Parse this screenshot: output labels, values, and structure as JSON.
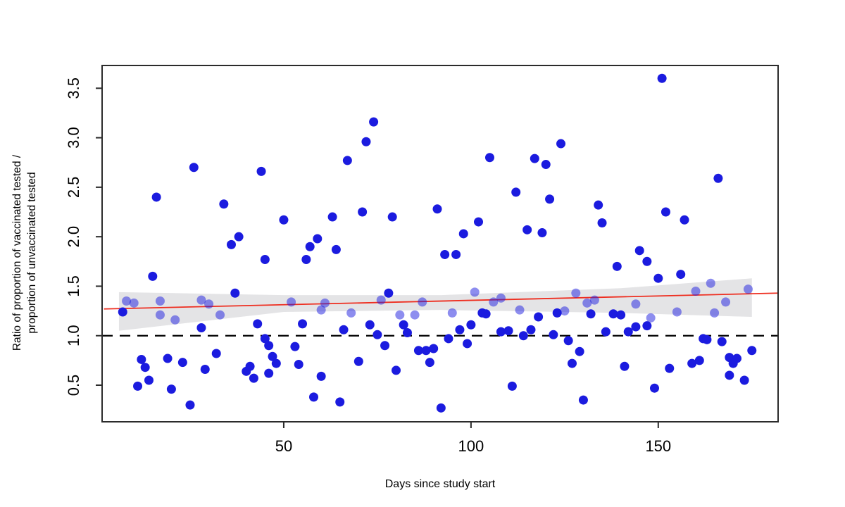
{
  "figure": {
    "background": "#ffffff"
  },
  "chart_data": {
    "type": "scatter",
    "title": "",
    "xlabel": "Days since study start",
    "ylabel_line1": "Ratio of proportion of vaccinated tested /",
    "ylabel_line2": "proportion of unvaccinated tested",
    "xlim": [
      1.5,
      182
    ],
    "ylim": [
      0.13,
      3.73
    ],
    "x_ticks": [
      {
        "v": 50,
        "label": "50"
      },
      {
        "v": 100,
        "label": "100"
      },
      {
        "v": 150,
        "label": "150"
      }
    ],
    "y_ticks": [
      {
        "v": 0.5,
        "label": "0.5"
      },
      {
        "v": 1.0,
        "label": "1.0"
      },
      {
        "v": 1.5,
        "label": "1.5"
      },
      {
        "v": 2.0,
        "label": "2.0"
      },
      {
        "v": 2.5,
        "label": "2.5"
      },
      {
        "v": 3.0,
        "label": "3.0"
      },
      {
        "v": 3.5,
        "label": "3.5"
      }
    ],
    "grid": false,
    "legend": "none",
    "axis_color": "#2b2b2b",
    "reference_line": {
      "y": 1.0,
      "style": "dashed",
      "color": "#000000"
    },
    "regression_line": {
      "color": "#ee2e20",
      "x": [
        2,
        182
      ],
      "y": [
        1.27,
        1.43
      ]
    },
    "confidence_band": {
      "color": "#e4e4e6",
      "x": [
        6,
        50,
        92,
        140,
        175
      ],
      "upper": [
        1.44,
        1.41,
        1.41,
        1.48,
        1.58
      ],
      "lower": [
        1.05,
        1.24,
        1.26,
        1.23,
        1.19
      ]
    },
    "points": {
      "color": "#1b1bdf",
      "alpha_value": 0.5,
      "radius": 6.5,
      "data": [
        [
          26,
          2.7,
          0
        ],
        [
          44,
          2.66,
          0
        ],
        [
          67,
          2.77,
          0
        ],
        [
          72,
          2.96,
          0
        ],
        [
          74,
          3.16,
          0
        ],
        [
          105,
          2.8,
          0
        ],
        [
          117,
          2.79,
          0
        ],
        [
          120,
          2.73,
          0
        ],
        [
          124,
          2.94,
          0
        ],
        [
          151,
          3.6,
          0
        ],
        [
          166,
          2.59,
          0
        ],
        [
          16,
          2.4,
          0
        ],
        [
          34,
          2.33,
          0
        ],
        [
          50,
          2.17,
          0
        ],
        [
          38,
          2.0,
          0
        ],
        [
          36,
          1.92,
          0
        ],
        [
          45,
          1.77,
          0
        ],
        [
          15,
          1.6,
          0
        ],
        [
          63,
          2.2,
          0
        ],
        [
          71,
          2.25,
          0
        ],
        [
          79,
          2.2,
          0
        ],
        [
          91,
          2.28,
          0
        ],
        [
          98,
          2.03,
          0
        ],
        [
          59,
          1.98,
          0
        ],
        [
          57,
          1.9,
          0
        ],
        [
          64,
          1.87,
          0
        ],
        [
          56,
          1.77,
          0
        ],
        [
          93,
          1.82,
          0
        ],
        [
          96,
          1.82,
          0
        ],
        [
          112,
          2.45,
          0
        ],
        [
          121,
          2.38,
          0
        ],
        [
          134,
          2.32,
          0
        ],
        [
          102,
          2.15,
          0
        ],
        [
          115,
          2.07,
          0
        ],
        [
          119,
          2.04,
          0
        ],
        [
          135,
          2.14,
          0
        ],
        [
          145,
          1.86,
          0
        ],
        [
          147,
          1.75,
          0
        ],
        [
          139,
          1.7,
          0
        ],
        [
          152,
          2.25,
          0
        ],
        [
          157,
          2.17,
          0
        ],
        [
          156,
          1.62,
          0
        ],
        [
          150,
          1.58,
          0
        ],
        [
          7,
          1.24,
          0
        ],
        [
          8,
          1.35,
          1
        ],
        [
          10,
          1.33,
          1
        ],
        [
          17,
          1.35,
          1
        ],
        [
          17,
          1.21,
          1
        ],
        [
          21,
          1.16,
          1
        ],
        [
          28,
          1.36,
          1
        ],
        [
          30,
          1.32,
          1
        ],
        [
          33,
          1.21,
          1
        ],
        [
          37,
          1.43,
          0
        ],
        [
          28,
          1.08,
          0
        ],
        [
          43,
          1.12,
          0
        ],
        [
          52,
          1.34,
          1
        ],
        [
          60,
          1.26,
          1
        ],
        [
          61,
          1.33,
          1
        ],
        [
          68,
          1.23,
          1
        ],
        [
          76,
          1.36,
          1
        ],
        [
          78,
          1.43,
          0
        ],
        [
          81,
          1.21,
          1
        ],
        [
          85,
          1.21,
          1
        ],
        [
          87,
          1.34,
          1
        ],
        [
          95,
          1.23,
          1
        ],
        [
          101,
          1.44,
          1
        ],
        [
          106,
          1.34,
          1
        ],
        [
          108,
          1.38,
          1
        ],
        [
          113,
          1.26,
          1
        ],
        [
          125,
          1.25,
          1
        ],
        [
          128,
          1.43,
          1
        ],
        [
          131,
          1.33,
          1
        ],
        [
          133,
          1.36,
          1
        ],
        [
          144,
          1.32,
          1
        ],
        [
          148,
          1.18,
          1
        ],
        [
          155,
          1.24,
          1
        ],
        [
          160,
          1.45,
          1
        ],
        [
          164,
          1.53,
          1
        ],
        [
          165,
          1.23,
          1
        ],
        [
          168,
          1.34,
          1
        ],
        [
          174,
          1.47,
          1
        ],
        [
          123,
          1.23,
          0
        ],
        [
          132,
          1.22,
          0
        ],
        [
          138,
          1.22,
          0
        ],
        [
          140,
          1.21,
          0
        ],
        [
          103,
          1.23,
          0
        ],
        [
          104,
          1.22,
          0
        ],
        [
          118,
          1.19,
          0
        ],
        [
          55,
          1.12,
          0
        ],
        [
          66,
          1.06,
          0
        ],
        [
          73,
          1.11,
          0
        ],
        [
          75,
          1.01,
          0
        ],
        [
          82,
          1.11,
          0
        ],
        [
          83,
          1.03,
          0
        ],
        [
          97,
          1.06,
          0
        ],
        [
          94,
          0.97,
          0
        ],
        [
          99,
          0.92,
          0
        ],
        [
          53,
          0.89,
          0
        ],
        [
          77,
          0.9,
          0
        ],
        [
          86,
          0.85,
          0
        ],
        [
          88,
          0.85,
          0
        ],
        [
          90,
          0.87,
          0
        ],
        [
          100,
          1.11,
          0
        ],
        [
          108,
          1.04,
          0
        ],
        [
          110,
          1.05,
          0
        ],
        [
          116,
          1.06,
          0
        ],
        [
          114,
          1.0,
          0
        ],
        [
          122,
          1.01,
          0
        ],
        [
          136,
          1.04,
          0
        ],
        [
          142,
          1.04,
          0
        ],
        [
          144,
          1.09,
          0
        ],
        [
          147,
          1.1,
          0
        ],
        [
          126,
          0.95,
          0
        ],
        [
          45,
          0.97,
          0
        ],
        [
          46,
          0.9,
          0
        ],
        [
          162,
          0.97,
          0
        ],
        [
          163,
          0.96,
          0
        ],
        [
          167,
          0.94,
          0
        ],
        [
          12,
          0.76,
          0
        ],
        [
          13,
          0.68,
          0
        ],
        [
          11,
          0.49,
          0
        ],
        [
          14,
          0.55,
          0
        ],
        [
          19,
          0.77,
          0
        ],
        [
          23,
          0.73,
          0
        ],
        [
          20,
          0.46,
          0
        ],
        [
          25,
          0.3,
          0
        ],
        [
          29,
          0.66,
          0
        ],
        [
          32,
          0.82,
          0
        ],
        [
          40,
          0.64,
          0
        ],
        [
          41,
          0.69,
          0
        ],
        [
          42,
          0.57,
          0
        ],
        [
          47,
          0.79,
          0
        ],
        [
          48,
          0.72,
          0
        ],
        [
          46,
          0.62,
          0
        ],
        [
          54,
          0.71,
          0
        ],
        [
          70,
          0.74,
          0
        ],
        [
          89,
          0.73,
          0
        ],
        [
          80,
          0.65,
          0
        ],
        [
          60,
          0.59,
          0
        ],
        [
          58,
          0.38,
          0
        ],
        [
          65,
          0.33,
          0
        ],
        [
          92,
          0.27,
          0
        ],
        [
          129,
          0.84,
          0
        ],
        [
          127,
          0.72,
          0
        ],
        [
          141,
          0.69,
          0
        ],
        [
          111,
          0.49,
          0
        ],
        [
          130,
          0.35,
          0
        ],
        [
          175,
          0.85,
          0
        ],
        [
          169,
          0.78,
          0
        ],
        [
          171,
          0.77,
          0
        ],
        [
          170,
          0.72,
          0
        ],
        [
          159,
          0.72,
          0
        ],
        [
          161,
          0.75,
          0
        ],
        [
          153,
          0.67,
          0
        ],
        [
          169,
          0.6,
          0
        ],
        [
          173,
          0.55,
          0
        ],
        [
          149,
          0.47,
          0
        ]
      ]
    }
  }
}
